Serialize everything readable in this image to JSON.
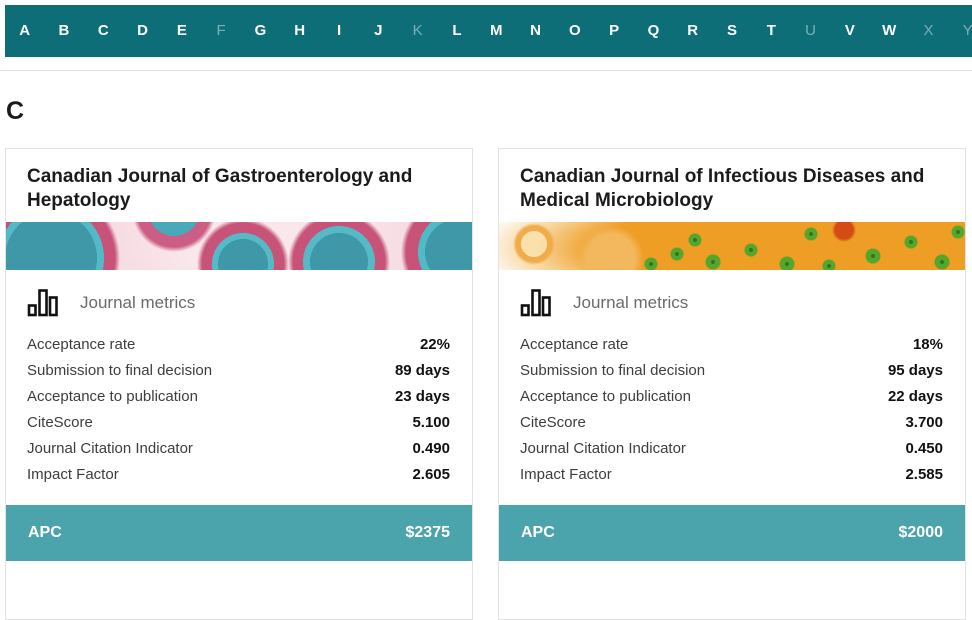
{
  "alphabet_bar": {
    "letters": [
      {
        "label": "A",
        "enabled": true
      },
      {
        "label": "B",
        "enabled": true
      },
      {
        "label": "C",
        "enabled": true
      },
      {
        "label": "D",
        "enabled": true
      },
      {
        "label": "E",
        "enabled": true
      },
      {
        "label": "F",
        "enabled": false
      },
      {
        "label": "G",
        "enabled": true
      },
      {
        "label": "H",
        "enabled": true
      },
      {
        "label": "I",
        "enabled": true
      },
      {
        "label": "J",
        "enabled": true
      },
      {
        "label": "K",
        "enabled": false
      },
      {
        "label": "L",
        "enabled": true
      },
      {
        "label": "M",
        "enabled": true
      },
      {
        "label": "N",
        "enabled": true
      },
      {
        "label": "O",
        "enabled": true
      },
      {
        "label": "P",
        "enabled": true
      },
      {
        "label": "Q",
        "enabled": true
      },
      {
        "label": "R",
        "enabled": true
      },
      {
        "label": "S",
        "enabled": true
      },
      {
        "label": "T",
        "enabled": true
      },
      {
        "label": "U",
        "enabled": false
      },
      {
        "label": "V",
        "enabled": true
      },
      {
        "label": "W",
        "enabled": true
      },
      {
        "label": "X",
        "enabled": false
      },
      {
        "label": "Y",
        "enabled": false
      }
    ]
  },
  "page": {
    "section_heading": "C"
  },
  "cards": [
    {
      "title": "Canadian Journal of Gastroenterology and Hepatology",
      "banner_description": "pink-and-teal-microscopy-image",
      "metrics_header": "Journal metrics",
      "metrics": [
        {
          "label": "Acceptance rate",
          "value": "22%"
        },
        {
          "label": "Submission to final decision",
          "value": "89 days"
        },
        {
          "label": "Acceptance to publication",
          "value": "23 days"
        },
        {
          "label": "CiteScore",
          "value": "5.100"
        },
        {
          "label": "Journal Citation Indicator",
          "value": "0.490"
        },
        {
          "label": "Impact Factor",
          "value": "2.605"
        }
      ],
      "apc_label": "APC",
      "apc_value": "$2375"
    },
    {
      "title": "Canadian Journal of Infectious Diseases and Medical Microbiology",
      "banner_description": "orange-and-green-virus-microscopy-image",
      "metrics_header": "Journal metrics",
      "metrics": [
        {
          "label": "Acceptance rate",
          "value": "18%"
        },
        {
          "label": "Submission to final decision",
          "value": "95 days"
        },
        {
          "label": "Acceptance to publication",
          "value": "22 days"
        },
        {
          "label": "CiteScore",
          "value": "3.700"
        },
        {
          "label": "Journal Citation Indicator",
          "value": "0.450"
        },
        {
          "label": "Impact Factor",
          "value": "2.585"
        }
      ],
      "apc_label": "APC",
      "apc_value": "$2000"
    }
  ],
  "colors": {
    "topbar_teal": "#0d6e78",
    "footer_teal": "#4ba3ab",
    "disabled_letter": "rgba(255,255,255,0.45)",
    "title_text": "#1b1b1b",
    "metric_label": "#3d3d3d",
    "metrics_header_text": "#6b6b6b",
    "card_border": "#e3e3e3"
  }
}
